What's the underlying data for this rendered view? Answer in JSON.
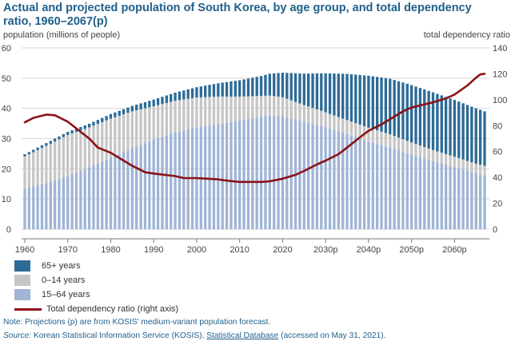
{
  "title": "Actual and projected population of South Korea, by age group, and total dependency ratio, 1960–2067(p)",
  "left_axis_caption": "population (millions of people)",
  "right_axis_caption": "total dependency ratio",
  "legend": [
    {
      "label": "65+ years",
      "color": "#2c6b97",
      "kind": "box"
    },
    {
      "label": "0–14 years",
      "color": "#c6c6c6",
      "kind": "box"
    },
    {
      "label": "15–64 years",
      "color": "#9fb4d6",
      "kind": "box"
    },
    {
      "label": "Total dependency ratio (right axis)",
      "color": "#8b1217",
      "kind": "line"
    }
  ],
  "footnote": {
    "note": "Note: Projections (p) are from KOSIS' medium-variant population forecast.",
    "source_label": "Source:",
    "source_text_1": " Korean Statistical Information Service (KOSIS), ",
    "source_link": "Statistical Database",
    "source_text_2": " (accessed on May 31, 2021)."
  },
  "chart_data": {
    "type": "bar",
    "stacked": true,
    "x_range": [
      1960,
      2067
    ],
    "x_ticks": [
      {
        "year": 1960,
        "label": "1960"
      },
      {
        "year": 1970,
        "label": "1970"
      },
      {
        "year": 1980,
        "label": "1980"
      },
      {
        "year": 1990,
        "label": "1990"
      },
      {
        "year": 2000,
        "label": "2000"
      },
      {
        "year": 2010,
        "label": "2010"
      },
      {
        "year": 2020,
        "label": "2020"
      },
      {
        "year": 2030,
        "label": "2030p"
      },
      {
        "year": 2040,
        "label": "2040p"
      },
      {
        "year": 2050,
        "label": "2050p"
      },
      {
        "year": 2060,
        "label": "2060p"
      }
    ],
    "y_left": {
      "min": 0,
      "max": 60,
      "ticks": [
        0,
        10,
        20,
        30,
        40,
        50,
        60
      ]
    },
    "y_right": {
      "min": 0,
      "max": 140,
      "ticks": [
        0,
        20,
        40,
        60,
        80,
        100,
        120,
        140
      ]
    },
    "grid": true,
    "series": [
      {
        "name": "15–64 years",
        "color": "#9fb4d6",
        "points": [
          [
            1960,
            13.5
          ],
          [
            1965,
            15.2
          ],
          [
            1970,
            17.5
          ],
          [
            1975,
            20.5
          ],
          [
            1980,
            23.7
          ],
          [
            1985,
            26.7
          ],
          [
            1990,
            29.7
          ],
          [
            1995,
            32.0
          ],
          [
            2000,
            33.7
          ],
          [
            2005,
            34.7
          ],
          [
            2010,
            36.0
          ],
          [
            2015,
            37.2
          ],
          [
            2017,
            37.6
          ],
          [
            2020,
            37.4
          ],
          [
            2025,
            35.6
          ],
          [
            2030,
            33.8
          ],
          [
            2035,
            31.5
          ],
          [
            2040,
            29.0
          ],
          [
            2045,
            27.0
          ],
          [
            2050,
            24.7
          ],
          [
            2055,
            22.5
          ],
          [
            2060,
            20.5
          ],
          [
            2065,
            18.5
          ],
          [
            2067,
            17.8
          ]
        ]
      },
      {
        "name": "0–14 years",
        "color": "#c6c6c6",
        "points": [
          [
            1960,
            10.6
          ],
          [
            1965,
            12.4
          ],
          [
            1970,
            13.7
          ],
          [
            1975,
            13.2
          ],
          [
            1980,
            12.9
          ],
          [
            1985,
            12.3
          ],
          [
            1990,
            11.0
          ],
          [
            1995,
            10.5
          ],
          [
            2000,
            9.9
          ],
          [
            2005,
            9.2
          ],
          [
            2010,
            7.9
          ],
          [
            2015,
            6.9
          ],
          [
            2020,
            6.3
          ],
          [
            2025,
            5.5
          ],
          [
            2030,
            4.9
          ],
          [
            2035,
            4.6
          ],
          [
            2040,
            4.6
          ],
          [
            2045,
            4.4
          ],
          [
            2050,
            4.0
          ],
          [
            2055,
            3.7
          ],
          [
            2060,
            3.5
          ],
          [
            2065,
            3.2
          ],
          [
            2067,
            3.2
          ]
        ]
      },
      {
        "name": "65+ years",
        "color": "#2c6b97",
        "points": [
          [
            1960,
            0.7
          ],
          [
            1965,
            0.9
          ],
          [
            1970,
            1.0
          ],
          [
            1975,
            1.2
          ],
          [
            1980,
            1.5
          ],
          [
            1985,
            1.8
          ],
          [
            1990,
            2.2
          ],
          [
            1995,
            2.7
          ],
          [
            2000,
            3.4
          ],
          [
            2005,
            4.4
          ],
          [
            2010,
            5.4
          ],
          [
            2015,
            6.6
          ],
          [
            2020,
            8.1
          ],
          [
            2025,
            10.4
          ],
          [
            2030,
            12.9
          ],
          [
            2035,
            15.3
          ],
          [
            2040,
            17.2
          ],
          [
            2045,
            18.4
          ],
          [
            2050,
            19.0
          ],
          [
            2055,
            19.1
          ],
          [
            2060,
            18.8
          ],
          [
            2065,
            18.3
          ],
          [
            2067,
            18.0
          ]
        ]
      },
      {
        "name": "Total dependency ratio (right axis)",
        "axis": "right",
        "color": "#8b1217",
        "points": [
          [
            1960,
            82.5
          ],
          [
            1962,
            86
          ],
          [
            1965,
            88.5
          ],
          [
            1967,
            88
          ],
          [
            1970,
            83
          ],
          [
            1975,
            70
          ],
          [
            1977,
            63
          ],
          [
            1980,
            59
          ],
          [
            1983,
            53
          ],
          [
            1985,
            49
          ],
          [
            1988,
            44
          ],
          [
            1990,
            43
          ],
          [
            1995,
            41
          ],
          [
            1997,
            39.5
          ],
          [
            2000,
            39.5
          ],
          [
            2005,
            38.5
          ],
          [
            2007,
            37.5
          ],
          [
            2010,
            36.5
          ],
          [
            2015,
            36.5
          ],
          [
            2017,
            37
          ],
          [
            2020,
            39
          ],
          [
            2023,
            42
          ],
          [
            2025,
            45
          ],
          [
            2028,
            50
          ],
          [
            2030,
            53
          ],
          [
            2033,
            58
          ],
          [
            2035,
            63
          ],
          [
            2038,
            71
          ],
          [
            2040,
            76
          ],
          [
            2043,
            81
          ],
          [
            2045,
            85
          ],
          [
            2048,
            91
          ],
          [
            2050,
            94
          ],
          [
            2055,
            98
          ],
          [
            2058,
            101
          ],
          [
            2060,
            104
          ],
          [
            2063,
            111
          ],
          [
            2065,
            117
          ],
          [
            2066,
            119.5
          ],
          [
            2067,
            120
          ]
        ]
      }
    ]
  }
}
